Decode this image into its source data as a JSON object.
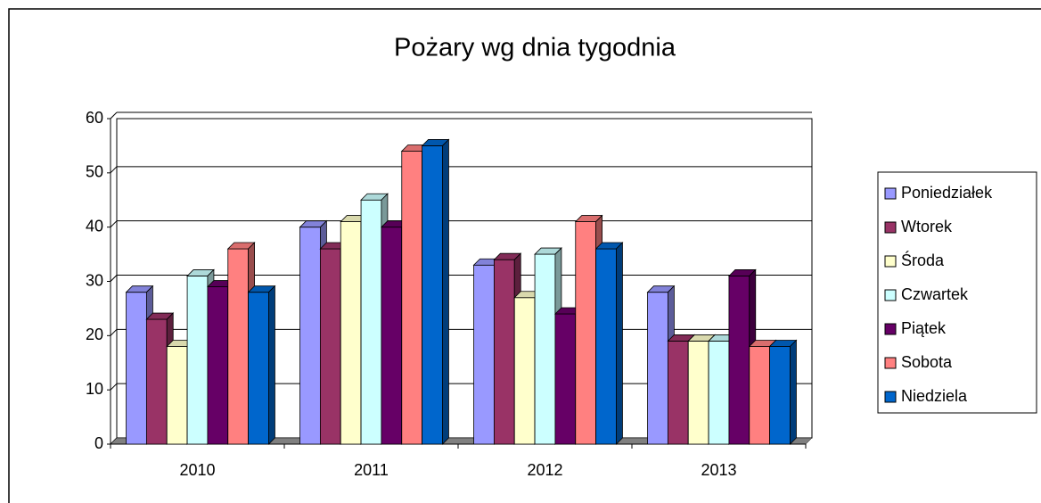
{
  "chart_data": {
    "type": "bar",
    "title": "Pożary wg dnia tygodnia",
    "categories": [
      "2010",
      "2011",
      "2012",
      "2013"
    ],
    "series": [
      {
        "name": "Poniedziałek",
        "color": "#9999ff",
        "values": [
          28,
          40,
          33,
          28
        ]
      },
      {
        "name": "Wtorek",
        "color": "#993366",
        "values": [
          23,
          36,
          34,
          19
        ]
      },
      {
        "name": "Środa",
        "color": "#ffffcc",
        "values": [
          18,
          41,
          27,
          19
        ]
      },
      {
        "name": "Czwartek",
        "color": "#ccffff",
        "values": [
          31,
          45,
          35,
          19
        ]
      },
      {
        "name": "Piątek",
        "color": "#660066",
        "values": [
          29,
          40,
          24,
          31
        ]
      },
      {
        "name": "Sobota",
        "color": "#ff8080",
        "values": [
          36,
          54,
          41,
          18
        ]
      },
      {
        "name": "Niedziela",
        "color": "#0066cc",
        "values": [
          28,
          55,
          36,
          18
        ]
      }
    ],
    "ylim": [
      0,
      60
    ],
    "yticks": [
      0,
      10,
      20,
      30,
      40,
      50,
      60
    ],
    "grid": true,
    "legend": "right"
  }
}
